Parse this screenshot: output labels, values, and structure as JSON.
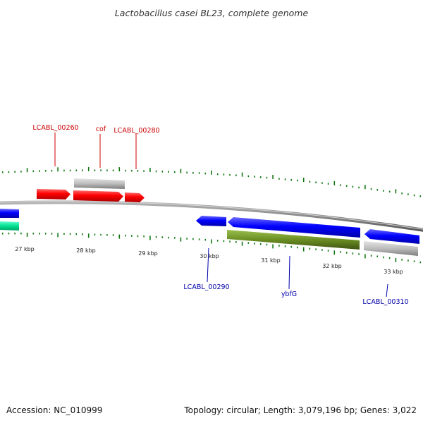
{
  "title": "Lactobacillus casei BL23, complete genome",
  "footer": {
    "accession": "Accession: NC_010999",
    "summary": "Topology: circular; Length: 3,079,196 bp; Genes: 3,022"
  },
  "colors": {
    "forward_gene": "#ff0000",
    "reverse_gene": "#0000ff",
    "pseudo_gene": "#bdbdbd",
    "rna_gene": "#6b8e23",
    "teal_gene": "#00d88a",
    "tick": "#117711",
    "backbone": "#888888",
    "forward_label": "#cc0000",
    "reverse_label": "#0000aa"
  },
  "kbp_labels": [
    "27 kbp",
    "28 kbp",
    "29 kbp",
    "30 kbp",
    "31 kbp",
    "32 kbp",
    "33 kbp"
  ],
  "gene_labels": [
    {
      "text": "LCABL_00260",
      "strand": "forward"
    },
    {
      "text": "cof",
      "strand": "forward"
    },
    {
      "text": "LCABL_00280",
      "strand": "forward"
    },
    {
      "text": "LCABL_00290",
      "strand": "reverse"
    },
    {
      "text": "ybfG",
      "strand": "reverse"
    },
    {
      "text": "LCABL_00310",
      "strand": "reverse"
    }
  ],
  "genes": [
    {
      "id": "blue-left-edge",
      "strand": "reverse",
      "type": "gene"
    },
    {
      "id": "teal-left-edge",
      "strand": "reverse",
      "type": "teal"
    },
    {
      "id": "red-1",
      "strand": "forward",
      "type": "gene"
    },
    {
      "id": "gray-top",
      "strand": "forward",
      "type": "pseudo"
    },
    {
      "id": "red-2",
      "strand": "forward",
      "type": "gene"
    },
    {
      "id": "red-3",
      "strand": "forward",
      "type": "gene"
    },
    {
      "id": "blue-small",
      "strand": "reverse",
      "type": "gene"
    },
    {
      "id": "blue-long",
      "strand": "reverse",
      "type": "gene"
    },
    {
      "id": "blue-right",
      "strand": "reverse",
      "type": "gene"
    },
    {
      "id": "green-rna",
      "strand": "reverse",
      "type": "rna"
    },
    {
      "id": "gray-right",
      "strand": "reverse",
      "type": "pseudo"
    }
  ]
}
